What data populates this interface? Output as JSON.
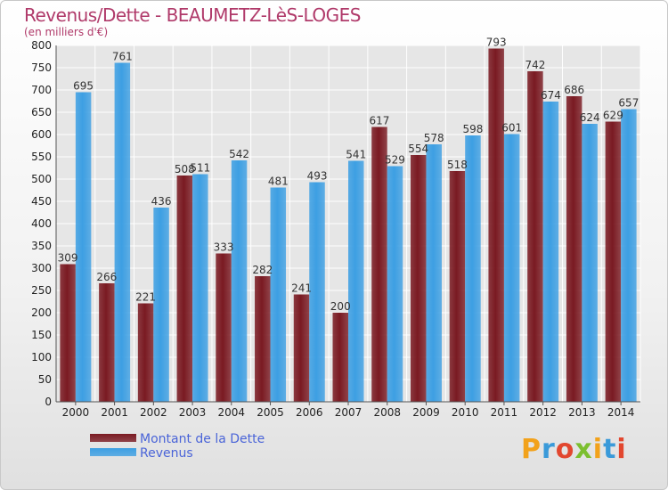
{
  "header": {
    "title": "Revenus/Dette - BEAUMETZ-LèS-LOGES",
    "subtitle": "(en milliers d'€)"
  },
  "chart_data": {
    "type": "bar",
    "title": "Revenus/Dette - BEAUMETZ-LèS-LOGES",
    "subtitle": "(en milliers d'€)",
    "categories": [
      "2000",
      "2001",
      "2002",
      "2003",
      "2004",
      "2005",
      "2006",
      "2007",
      "2008",
      "2009",
      "2010",
      "2011",
      "2012",
      "2013",
      "2014"
    ],
    "series": [
      {
        "name": "Montant de la Dette",
        "color": "#7a1a22",
        "values": [
          309,
          266,
          221,
          508,
          333,
          282,
          241,
          200,
          617,
          554,
          518,
          793,
          742,
          686,
          629
        ]
      },
      {
        "name": "Revenus",
        "color": "#3d9fe3",
        "values": [
          695,
          761,
          436,
          511,
          542,
          481,
          493,
          541,
          529,
          578,
          598,
          601,
          674,
          624,
          657
        ]
      }
    ],
    "yticks": [
      0,
      50,
      100,
      150,
      200,
      250,
      300,
      350,
      400,
      450,
      500,
      550,
      600,
      650,
      700,
      750,
      800
    ],
    "ylim": [
      0,
      800
    ],
    "grid": true,
    "legend_position": "bottom-left"
  },
  "legend": {
    "items": [
      {
        "label": "Montant de la Dette",
        "color": "#7a1a22"
      },
      {
        "label": "Revenus",
        "color": "#3d9fe3"
      }
    ]
  },
  "brand": {
    "text": "Proxiti",
    "colors": [
      "#f2a21b",
      "#3a9ad9",
      "#e2472f",
      "#7cbf2f",
      "#f2a21b",
      "#3a9ad9",
      "#e2472f"
    ]
  }
}
